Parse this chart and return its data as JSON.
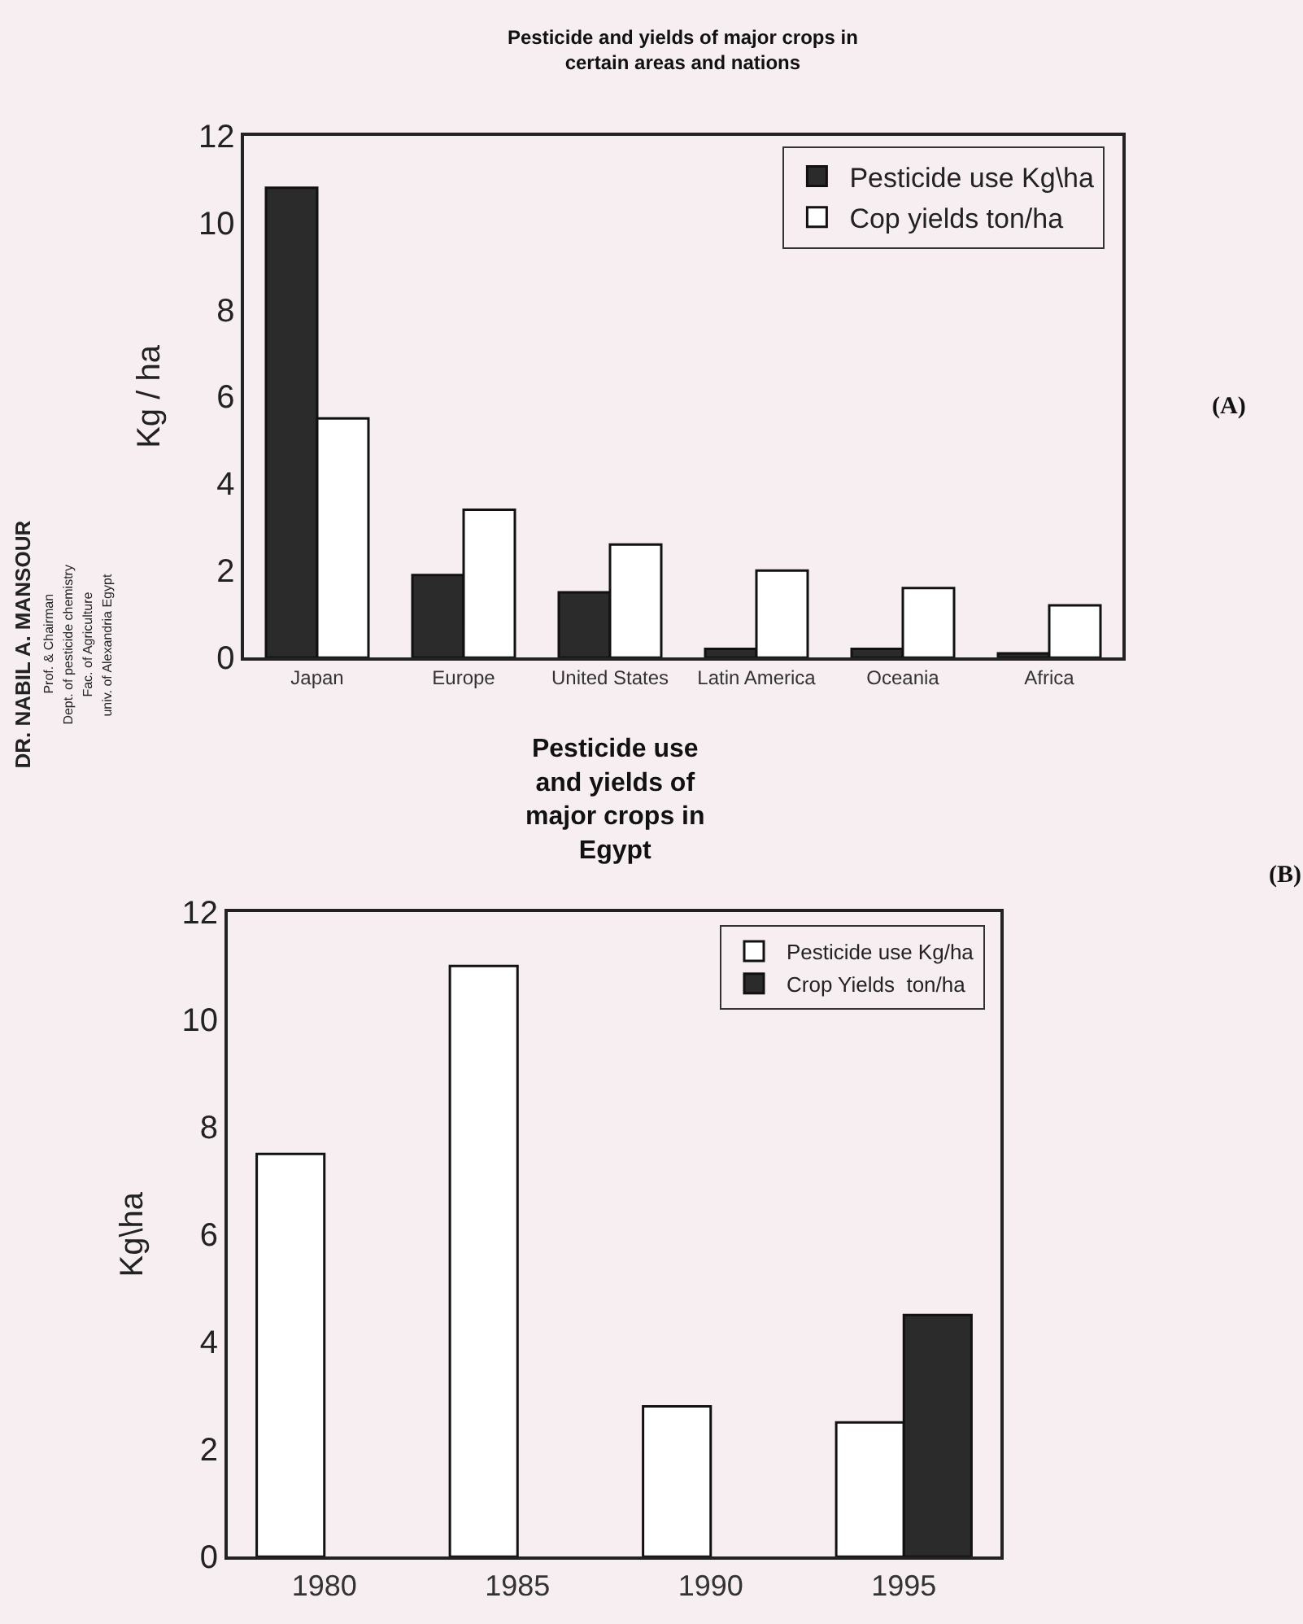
{
  "chart_data": [
    {
      "type": "bar",
      "title": "Pesticide and yields of major crops in\ncertain areas and nations",
      "ylabel": "Kg / ha",
      "categories": [
        "Japan",
        "Europe",
        "United States",
        "Latin America",
        "Oceania",
        "Africa"
      ],
      "series": [
        {
          "name": "Pesticide use Kg\\ha",
          "color": "#2b2b2b",
          "values": [
            10.8,
            1.9,
            1.5,
            0.2,
            0.2,
            0.1
          ]
        },
        {
          "name": "Cop yields ton/ha",
          "color": "#ffffff",
          "values": [
            5.5,
            3.4,
            2.6,
            2.0,
            1.6,
            1.2
          ]
        }
      ],
      "ylim": [
        0,
        12
      ],
      "yticks": [
        0,
        2,
        4,
        6,
        8,
        10,
        12
      ],
      "legend": "top right",
      "annotations": [
        "(A)",
        "DR. NABIL A. MANSOUR",
        "Prof. & Chairman",
        "Dept. of pesticide chemistry",
        "Fac. of Agriculture",
        "univ. of Alexandria Egypt"
      ]
    },
    {
      "type": "bar",
      "title": "Pesticide use\nand yields of\nmajor crops in\nEgypt",
      "ylabel": "Kg\\ha",
      "categories": [
        "1980",
        "1985",
        "1990",
        "1995"
      ],
      "series": [
        {
          "name": "Pesticide use Kg/ha",
          "color": "#ffffff",
          "values": [
            7.5,
            11.0,
            2.8,
            2.5
          ]
        },
        {
          "name": "Crop Yields  ton/ha",
          "color": "#2b2b2b",
          "values": [
            null,
            null,
            null,
            4.5
          ]
        }
      ],
      "ylim": [
        0,
        12
      ],
      "yticks": [
        0,
        2,
        4,
        6,
        8,
        10,
        12
      ],
      "legend": "top right",
      "annotations": [
        "(B)"
      ]
    }
  ]
}
